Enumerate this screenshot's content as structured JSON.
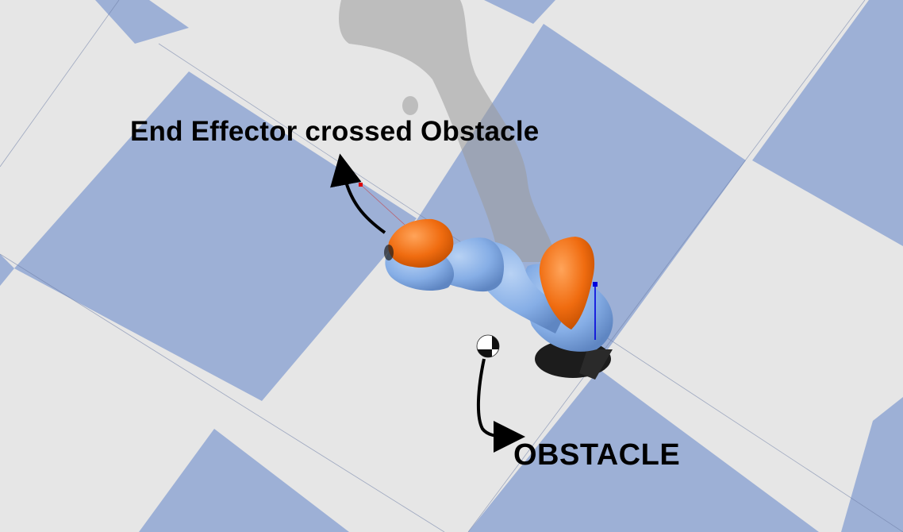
{
  "annotations": {
    "end_effector_label": "End Effector crossed Obstacle",
    "obstacle_label": "OBSTACLE"
  },
  "colors": {
    "floor_light": "#e6e6e6",
    "floor_tile": "#9db0d6",
    "robot_link": "#86aee6",
    "robot_joint": "#f06c10",
    "robot_base": "#1c1c1c",
    "shadow": "#9a9a9a",
    "arrow": "#000000",
    "axis_blue": "#0000dd",
    "target_marker": "#dd0000"
  },
  "icons": {
    "obstacle": "checkered-sphere-icon",
    "arrow": "curved-arrow-icon"
  }
}
